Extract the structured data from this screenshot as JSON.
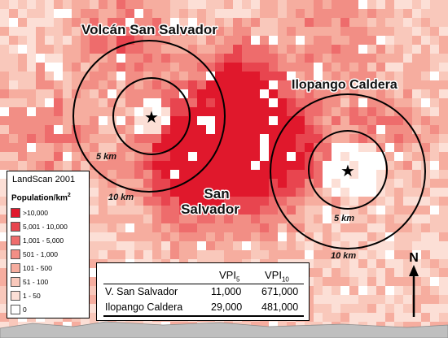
{
  "map": {
    "volcanoes": [
      {
        "name": "Volcán San Salvador",
        "inner_radius_label": "5 km",
        "outer_radius_label": "10 km"
      },
      {
        "name": "Ilopango Caldera",
        "inner_radius_label": "5 km",
        "outer_radius_label": "10 km"
      }
    ],
    "city_label_line1": "San",
    "city_label_line2": "Salvador",
    "star_symbol": "star-icon"
  },
  "legend": {
    "source": "LandScan 2001",
    "heading": "Population/km",
    "heading_sup": "2",
    "classes": [
      {
        "label": ">10,000",
        "color": "#e0182c"
      },
      {
        "label": "5,001 - 10,000",
        "color": "#e8454f"
      },
      {
        "label": "1,001 - 5,000",
        "color": "#ee6c6c"
      },
      {
        "label": "501 - 1,000",
        "color": "#f28e85"
      },
      {
        "label": "101 - 500",
        "color": "#f6ad9f"
      },
      {
        "label": "51 - 100",
        "color": "#f9c8bb"
      },
      {
        "label": "1 - 50",
        "color": "#fcdfd6"
      },
      {
        "label": "0",
        "color": "#ffffff"
      }
    ]
  },
  "vpi_table": {
    "col1_base": "VPI",
    "col1_sub": "5",
    "col2_base": "VPI",
    "col2_sub": "10",
    "rows": [
      {
        "name": "V. San Salvador",
        "vpi5": "11,000",
        "vpi10": "671,000"
      },
      {
        "name": "Ilopango Caldera",
        "vpi5": "29,000",
        "vpi10": "481,000"
      }
    ]
  },
  "north_arrow": {
    "label": "N"
  }
}
